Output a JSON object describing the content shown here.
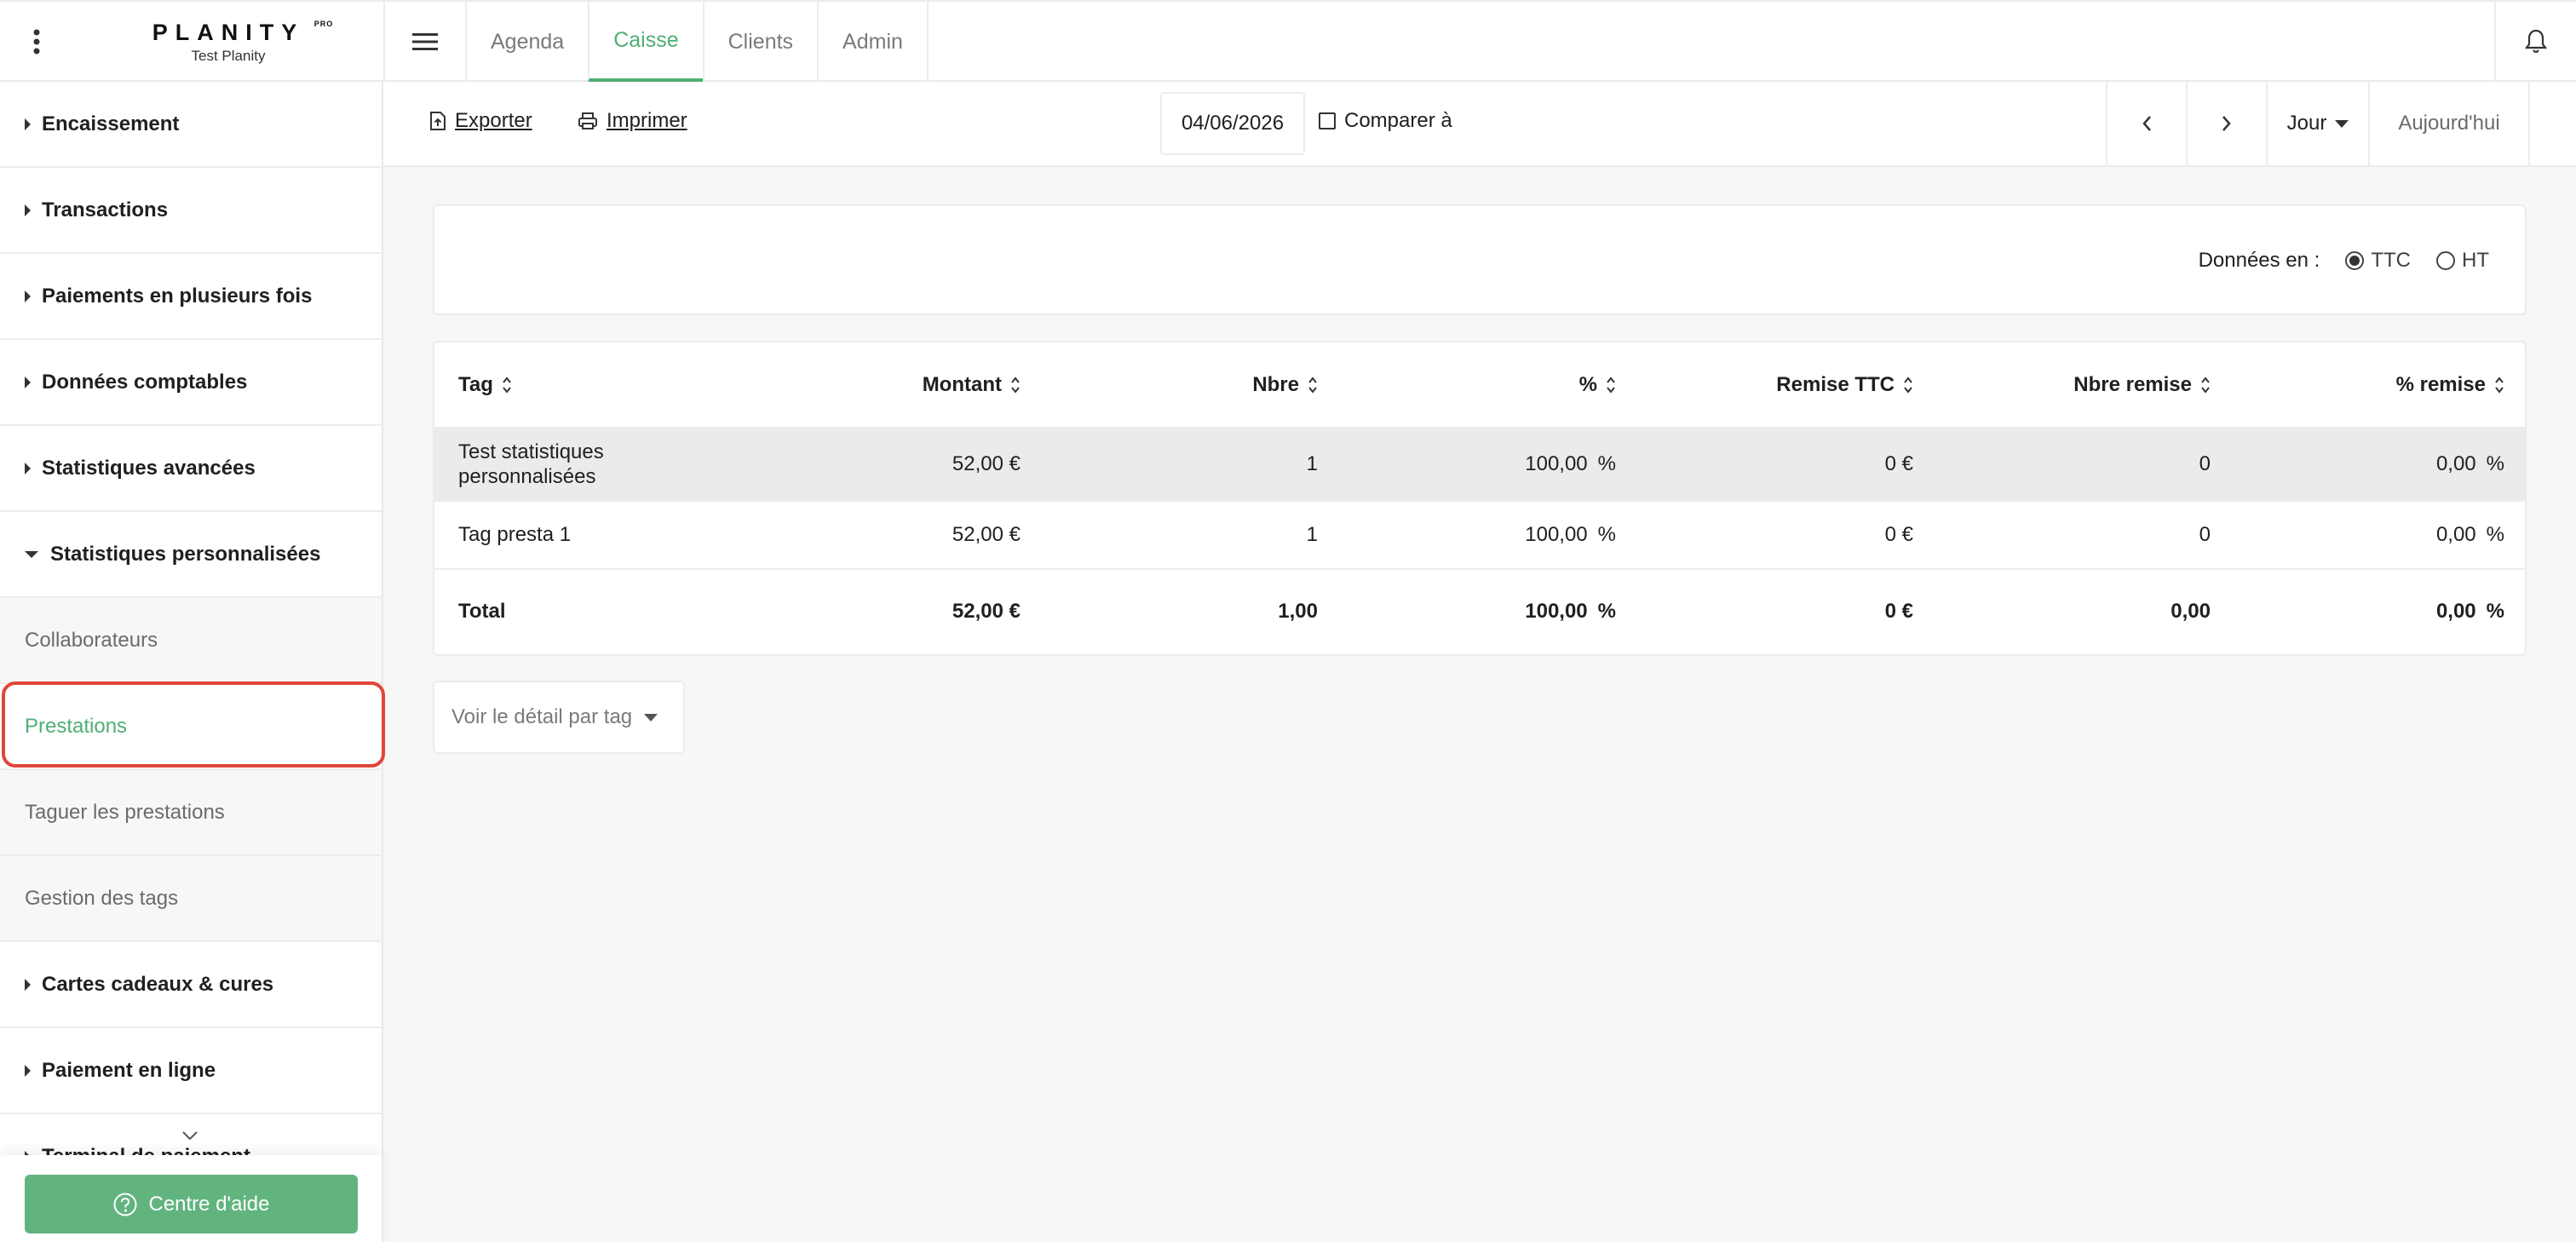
{
  "brand": {
    "name": "PLANITY",
    "badge": "PRO",
    "account": "Test Planity"
  },
  "nav": {
    "tabs": [
      "Agenda",
      "Caisse",
      "Clients",
      "Admin"
    ]
  },
  "sidebar": {
    "sections_top": [
      "Encaissement",
      "Transactions",
      "Paiements en plusieurs fois",
      "Données comptables",
      "Statistiques avancées"
    ],
    "open_section": "Statistiques personnalisées",
    "sub_items": [
      "Collaborateurs",
      "Prestations",
      "Taguer les prestations",
      "Gestion des tags"
    ],
    "sections_bottom": [
      "Cartes cadeaux & cures",
      "Paiement en ligne",
      "Terminal de paiement"
    ],
    "help_label": "Centre d'aide"
  },
  "toolbar": {
    "export_label": "Exporter",
    "print_label": "Imprimer",
    "date": "04/06/2026",
    "compare_label": "Comparer à",
    "period": "Jour",
    "today": "Aujourd'hui"
  },
  "filters": {
    "label": "Données en :",
    "ttc": "TTC",
    "ht": "HT",
    "selected": "TTC"
  },
  "table": {
    "headers": [
      "Tag",
      "Montant",
      "Nbre",
      "%",
      "Remise TTC",
      "Nbre remise",
      "% remise"
    ],
    "rows": [
      {
        "tag": "Test statistiques personnalisées",
        "montant": "52,00 €",
        "nbre": "1",
        "pct": "100,00",
        "remise": "0 €",
        "nbre_remise": "0",
        "pct_remise": "0,00"
      },
      {
        "tag": "Tag presta 1",
        "montant": "52,00 €",
        "nbre": "1",
        "pct": "100,00",
        "remise": "0 €",
        "nbre_remise": "0",
        "pct_remise": "0,00"
      }
    ],
    "total": {
      "label": "Total",
      "montant": "52,00 €",
      "nbre": "1,00",
      "pct": "100,00",
      "remise": "0 €",
      "nbre_remise": "0,00",
      "pct_remise": "0,00"
    },
    "pct_sign": "%"
  },
  "detail_dropdown": "Voir le détail par tag",
  "colors": {
    "accent": "#4eaf72",
    "highlight": "#e0463a",
    "help_button": "#62b47f"
  }
}
